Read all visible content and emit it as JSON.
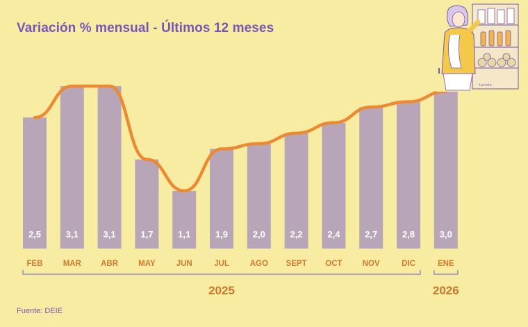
{
  "header": {
    "title": "Variación % mensual - Últimos 12 meses"
  },
  "footer": {
    "source": "Fuente: DEIE"
  },
  "illustration": {
    "icon": "shopper-at-market-shelf-illustration",
    "signature": "Lincoln"
  },
  "colors": {
    "background": "#f8eca2",
    "bar": "#b8a6b8",
    "line": "#ec8a34",
    "title": "#7a55b5",
    "month_label": "#d07a2c",
    "year_label": "#c8772c",
    "bracket": "#9a8cc0",
    "bar_label": "#ffffff"
  },
  "chart_data": {
    "type": "bar",
    "title": "Variación % mensual - Últimos 12 meses",
    "categories": [
      "FEB",
      "MAR",
      "ABR",
      "MAY",
      "JUN",
      "JUL",
      "AGO",
      "SEPT",
      "OCT",
      "NOV",
      "DIC",
      "ENE"
    ],
    "values": [
      2.5,
      3.1,
      3.1,
      1.7,
      1.1,
      1.9,
      2.0,
      2.2,
      2.4,
      2.7,
      2.8,
      3.0
    ],
    "value_labels": [
      "2,5",
      "3,1",
      "3,1",
      "1,7",
      "1,1",
      "1,9",
      "2,0",
      "2,2",
      "2,4",
      "2,7",
      "2,8",
      "3,0"
    ],
    "line_overlay": true,
    "year_groups": [
      {
        "label": "2025",
        "from": "FEB",
        "to": "DIC"
      },
      {
        "label": "2026",
        "from": "ENE",
        "to": "ENE"
      }
    ],
    "ylim": [
      0,
      3.3
    ],
    "grid": false,
    "legend": "none",
    "xlabel": "",
    "ylabel": ""
  }
}
